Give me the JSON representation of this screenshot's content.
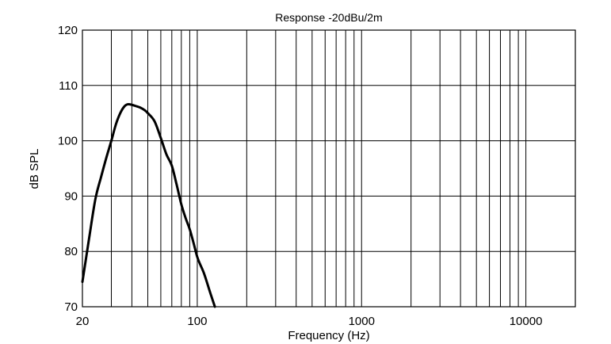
{
  "chart_data": {
    "type": "line",
    "title": "Response -20dBu/2m",
    "xlabel": "Frequency (Hz)",
    "ylabel": "dB SPL",
    "xscale": "log",
    "xlim": [
      20,
      20000
    ],
    "ylim": [
      70,
      120
    ],
    "grid": true,
    "legend": "none",
    "x_tick_labels": [
      {
        "value": 20,
        "label": "20"
      },
      {
        "value": 100,
        "label": "100"
      },
      {
        "value": 1000,
        "label": "1000"
      },
      {
        "value": 10000,
        "label": "10000"
      }
    ],
    "y_tick_labels": [
      {
        "value": 70,
        "label": "70"
      },
      {
        "value": 80,
        "label": "80"
      },
      {
        "value": 90,
        "label": "90"
      },
      {
        "value": 100,
        "label": "100"
      },
      {
        "value": 110,
        "label": "110"
      },
      {
        "value": 120,
        "label": "120"
      }
    ],
    "series": [
      {
        "color": "#000000",
        "x": [
          20,
          22,
          24,
          26,
          28,
          30,
          32,
          34,
          36,
          38,
          40,
          42,
          45,
          48,
          50,
          55,
          60,
          65,
          70,
          75,
          80,
          85,
          90,
          95,
          100,
          110,
          120,
          128
        ],
        "y": [
          74.5,
          82.5,
          89.5,
          93.5,
          97.0,
          100.0,
          103.0,
          105.0,
          106.2,
          106.6,
          106.5,
          106.3,
          106.0,
          105.5,
          105.0,
          103.5,
          100.5,
          97.5,
          95.5,
          92.0,
          88.5,
          86.0,
          84.0,
          81.5,
          79.0,
          76.0,
          72.5,
          70.0
        ]
      }
    ]
  }
}
